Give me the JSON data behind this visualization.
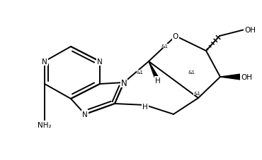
{
  "bg_color": "#ffffff",
  "line_color": "#000000",
  "lw": 1.4,
  "fs": 7.5,
  "fs_stereo": 5.0,
  "figsize": [
    3.7,
    2.28
  ],
  "dpi": 100,
  "xlim": [
    0,
    370
  ],
  "ylim": [
    0,
    228
  ]
}
